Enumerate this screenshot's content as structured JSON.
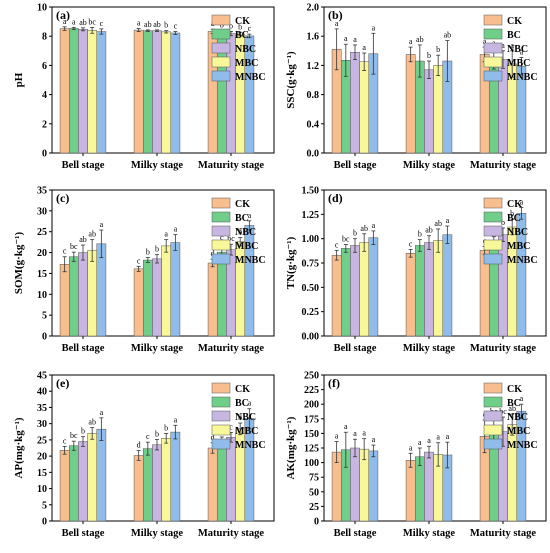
{
  "colors": {
    "CK": "#f9be8e",
    "BC": "#6fcf8a",
    "NBC": "#c8b6e2",
    "MBC": "#f8f89a",
    "MNBC": "#8fbcea",
    "axis": "#000000",
    "error_bar": "#333333"
  },
  "chart_data": [
    {
      "panel": "(a)",
      "type": "bar",
      "ylabel": "pH",
      "ylim": [
        0,
        10
      ],
      "yticks": [
        0,
        2,
        4,
        6,
        8,
        10
      ],
      "categories": [
        "Bell stage",
        "Milky stage",
        "Maturity stage"
      ],
      "legend": "top-right",
      "series": [
        {
          "name": "CK",
          "values": [
            8.52,
            8.42,
            8.33
          ],
          "errors": [
            0.12,
            0.1,
            0.15
          ],
          "letters": [
            "a",
            "a",
            "a"
          ]
        },
        {
          "name": "BC",
          "values": [
            8.53,
            8.38,
            8.22
          ],
          "errors": [
            0.08,
            0.05,
            0.18
          ],
          "letters": [
            "a",
            "ab",
            "b"
          ]
        },
        {
          "name": "NBC",
          "values": [
            8.47,
            8.38,
            8.18
          ],
          "errors": [
            0.1,
            0.05,
            0.15
          ],
          "letters": [
            "ab",
            "ab",
            "b"
          ]
        },
        {
          "name": "MBC",
          "values": [
            8.4,
            8.3,
            8.15
          ],
          "errors": [
            0.2,
            0.08,
            0.12
          ],
          "letters": [
            "bc",
            "b",
            "b"
          ]
        },
        {
          "name": "MNBC",
          "values": [
            8.32,
            8.22,
            8.02
          ],
          "errors": [
            0.18,
            0.1,
            0.12
          ],
          "letters": [
            "c",
            "c",
            "c"
          ]
        }
      ]
    },
    {
      "panel": "(b)",
      "type": "bar",
      "ylabel": "SSC(g·kg⁻¹)",
      "ylim": [
        0,
        2.0
      ],
      "yticks": [
        0.0,
        0.4,
        0.8,
        1.2,
        1.6,
        2.0
      ],
      "categories": [
        "Bell stage",
        "Milky stage",
        "Maturity stage"
      ],
      "legend": "top-right",
      "series": [
        {
          "name": "CK",
          "values": [
            1.42,
            1.35,
            1.35
          ],
          "errors": [
            0.28,
            0.1,
            0.1
          ],
          "letters": [
            "a",
            "a",
            "a"
          ]
        },
        {
          "name": "BC",
          "values": [
            1.27,
            1.26,
            1.29
          ],
          "errors": [
            0.22,
            0.22,
            0.14
          ],
          "letters": [
            "a",
            "ab",
            "a"
          ]
        },
        {
          "name": "NBC",
          "values": [
            1.38,
            1.14,
            1.28
          ],
          "errors": [
            0.1,
            0.12,
            0.12
          ],
          "letters": [
            "a",
            "b",
            "a"
          ]
        },
        {
          "name": "MBC",
          "values": [
            1.25,
            1.2,
            1.22
          ],
          "errors": [
            0.12,
            0.14,
            0.18
          ],
          "letters": [
            "a",
            "b",
            "a"
          ]
        },
        {
          "name": "MNBC",
          "values": [
            1.36,
            1.26,
            1.19
          ],
          "errors": [
            0.28,
            0.28,
            0.12
          ],
          "letters": [
            "a",
            "ab",
            "a"
          ]
        }
      ]
    },
    {
      "panel": "(c)",
      "type": "bar",
      "ylabel": "SOM(g·kg⁻¹)",
      "ylim": [
        0,
        35
      ],
      "yticks": [
        0,
        5,
        10,
        15,
        20,
        25,
        30,
        35
      ],
      "categories": [
        "Bell stage",
        "Milky stage",
        "Maturity stage"
      ],
      "legend": "top-right",
      "series": [
        {
          "name": "CK",
          "values": [
            17.2,
            16.1,
            17.5
          ],
          "errors": [
            1.8,
            0.6,
            0.9
          ],
          "letters": [
            "c",
            "c",
            "d"
          ]
        },
        {
          "name": "BC",
          "values": [
            19.0,
            18.2,
            20.1
          ],
          "errors": [
            1.1,
            0.6,
            2.2
          ],
          "letters": [
            "bc",
            "b",
            "c"
          ]
        },
        {
          "name": "NBC",
          "values": [
            20.0,
            18.5,
            20.7
          ],
          "errors": [
            1.8,
            1.0,
            1.3
          ],
          "letters": [
            "ab",
            "b",
            "bc"
          ]
        },
        {
          "name": "MBC",
          "values": [
            20.5,
            21.6,
            22.6
          ],
          "errors": [
            2.6,
            1.5,
            1.0
          ],
          "letters": [
            "ab",
            "a",
            "b"
          ]
        },
        {
          "name": "MNBC",
          "values": [
            22.1,
            22.4,
            26.5
          ],
          "errors": [
            3.3,
            1.9,
            1.1
          ],
          "letters": [
            "a",
            "a",
            "a"
          ]
        }
      ]
    },
    {
      "panel": "(d)",
      "type": "bar",
      "ylabel": "TN(g·kg⁻¹)",
      "ylim": [
        0,
        1.5
      ],
      "yticks": [
        0.0,
        0.25,
        0.5,
        0.75,
        1.0,
        1.25,
        1.5
      ],
      "categories": [
        "Bell stage",
        "Milky stage",
        "Maturity stage"
      ],
      "legend": "top-right",
      "series": [
        {
          "name": "CK",
          "values": [
            0.83,
            0.85,
            0.88
          ],
          "errors": [
            0.05,
            0.04,
            0.04
          ],
          "letters": [
            "c",
            "c",
            "c"
          ]
        },
        {
          "name": "BC",
          "values": [
            0.9,
            0.93,
            0.97
          ],
          "errors": [
            0.04,
            0.06,
            0.05
          ],
          "letters": [
            "bc",
            "b",
            "bc"
          ]
        },
        {
          "name": "NBC",
          "values": [
            0.93,
            0.96,
            1.04
          ],
          "errors": [
            0.07,
            0.07,
            0.07
          ],
          "letters": [
            "b",
            "ab",
            "b"
          ]
        },
        {
          "name": "MBC",
          "values": [
            0.96,
            0.98,
            1.12
          ],
          "errors": [
            0.09,
            0.12,
            0.08
          ],
          "letters": [
            "ab",
            "ab",
            "b"
          ]
        },
        {
          "name": "MNBC",
          "values": [
            1.01,
            1.04,
            1.26
          ],
          "errors": [
            0.07,
            0.09,
            0.06
          ],
          "letters": [
            "a",
            "a",
            "a"
          ]
        }
      ]
    },
    {
      "panel": "(e)",
      "type": "bar",
      "ylabel": "AP(mg·kg⁻¹)",
      "ylim": [
        0,
        45
      ],
      "yticks": [
        0,
        5,
        10,
        15,
        20,
        25,
        30,
        35,
        40,
        45
      ],
      "categories": [
        "Bell stage",
        "Milky stage",
        "Maturity stage"
      ],
      "legend": "top-right",
      "series": [
        {
          "name": "CK",
          "values": [
            21.8,
            20.2,
            22.5
          ],
          "errors": [
            1.2,
            1.5,
            1.6
          ],
          "letters": [
            "c",
            "d",
            "d"
          ]
        },
        {
          "name": "BC",
          "values": [
            23.2,
            22.3,
            24.5
          ],
          "errors": [
            1.4,
            2.0,
            1.4
          ],
          "letters": [
            "bc",
            "c",
            "c"
          ]
        },
        {
          "name": "NBC",
          "values": [
            24.5,
            23.5,
            25.8
          ],
          "errors": [
            1.5,
            1.6,
            1.5
          ],
          "letters": [
            "b",
            "b",
            "c"
          ]
        },
        {
          "name": "MBC",
          "values": [
            27.0,
            25.5,
            28.4
          ],
          "errors": [
            1.8,
            1.5,
            1.8
          ],
          "letters": [
            "ab",
            "b",
            "b"
          ]
        },
        {
          "name": "MNBC",
          "values": [
            28.3,
            27.4,
            31.6
          ],
          "errors": [
            3.5,
            2.1,
            3.0
          ],
          "letters": [
            "a",
            "a",
            "a"
          ]
        }
      ]
    },
    {
      "panel": "(f)",
      "type": "bar",
      "ylabel": "AK(mg·kg⁻¹)",
      "ylim": [
        0,
        250
      ],
      "yticks": [
        0,
        25,
        50,
        75,
        100,
        125,
        150,
        175,
        200,
        225,
        250
      ],
      "categories": [
        "Bell stage",
        "Milky stage",
        "Maturity stage"
      ],
      "legend": "top-right",
      "series": [
        {
          "name": "CK",
          "values": [
            118,
            104,
            145
          ],
          "errors": [
            18,
            12,
            28
          ],
          "letters": [
            "a",
            "a",
            "c"
          ]
        },
        {
          "name": "BC",
          "values": [
            122,
            110,
            153
          ],
          "errors": [
            30,
            15,
            25
          ],
          "letters": [
            "a",
            "a",
            "bc"
          ]
        },
        {
          "name": "NBC",
          "values": [
            125,
            118,
            153
          ],
          "errors": [
            15,
            10,
            25
          ],
          "letters": [
            "a",
            "a",
            "bc"
          ]
        },
        {
          "name": "MBC",
          "values": [
            123,
            114,
            165
          ],
          "errors": [
            18,
            20,
            18
          ],
          "letters": [
            "a",
            "a",
            "ab"
          ]
        },
        {
          "name": "MNBC",
          "values": [
            120,
            113,
            188
          ],
          "errors": [
            10,
            22,
            12
          ],
          "letters": [
            "a",
            "a",
            "a"
          ]
        }
      ]
    }
  ]
}
